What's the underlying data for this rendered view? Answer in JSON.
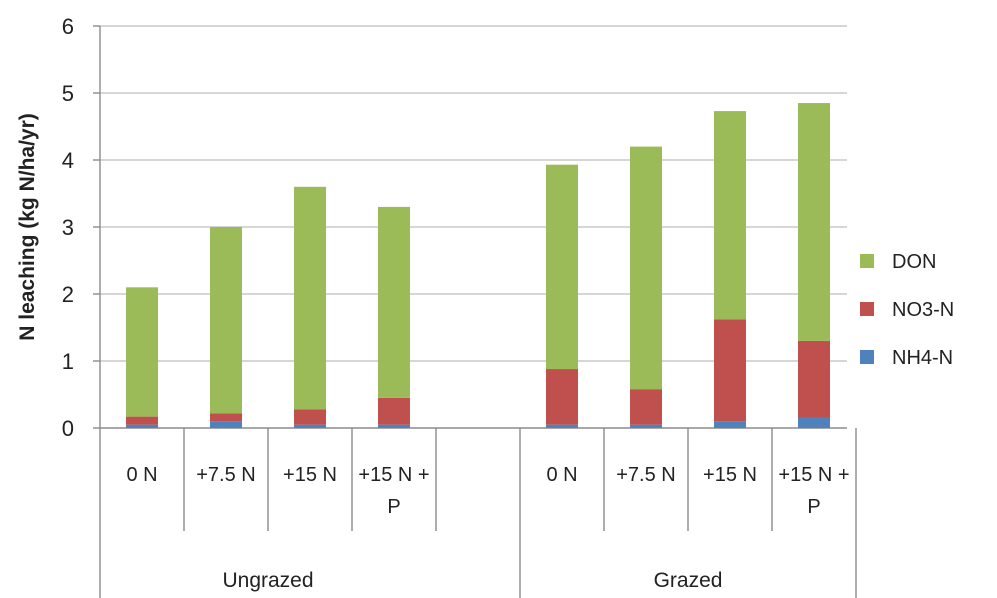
{
  "chart_data": {
    "type": "bar",
    "stacked": true,
    "ylabel": "N leaching (kg N/ha/yr)",
    "ylim": [
      0,
      6
    ],
    "yticks": [
      "0",
      "1",
      "2",
      "3",
      "4",
      "5",
      "6"
    ],
    "grid": true,
    "legend_position": "right",
    "groups": [
      {
        "name": "Ungrazed",
        "categories": [
          {
            "line1": "0 N",
            "line2": ""
          },
          {
            "line1": "+7.5 N",
            "line2": ""
          },
          {
            "line1": "+15 N",
            "line2": ""
          },
          {
            "line1": "+15 N +",
            "line2": "P"
          }
        ]
      },
      {
        "name": "Grazed",
        "categories": [
          {
            "line1": "0 N",
            "line2": ""
          },
          {
            "line1": "+7.5 N",
            "line2": ""
          },
          {
            "line1": "+15 N",
            "line2": ""
          },
          {
            "line1": "+15 N +",
            "line2": "P"
          }
        ]
      }
    ],
    "series": [
      {
        "name": "NH4-N",
        "color": "#4f81bd",
        "values": [
          0.05,
          0.1,
          0.05,
          0.05,
          0.05,
          0.05,
          0.1,
          0.15
        ]
      },
      {
        "name": "NO3-N",
        "color": "#c0504d",
        "values": [
          0.12,
          0.12,
          0.23,
          0.4,
          0.83,
          0.53,
          1.52,
          1.15
        ]
      },
      {
        "name": "DON",
        "color": "#9bbb59",
        "values": [
          1.93,
          2.78,
          3.32,
          2.85,
          3.05,
          3.62,
          3.11,
          3.55
        ]
      }
    ],
    "legend_order": [
      "DON",
      "NO3-N",
      "NH4-N"
    ]
  }
}
